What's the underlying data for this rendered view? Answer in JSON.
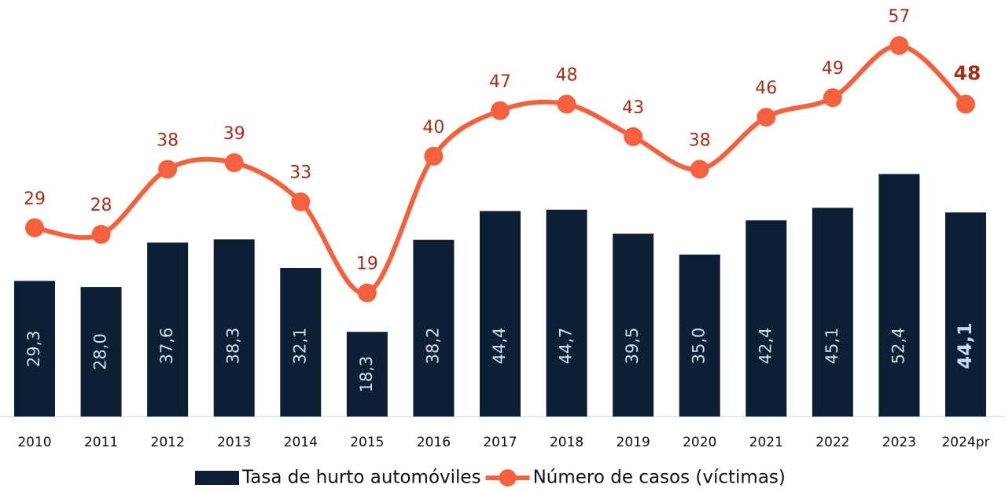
{
  "chart_data": {
    "type": "bar-line",
    "categories": [
      "2010",
      "2011",
      "2012",
      "2013",
      "2014",
      "2015",
      "2016",
      "2017",
      "2018",
      "2019",
      "2020",
      "2021",
      "2022",
      "2023",
      "2024pr"
    ],
    "series": [
      {
        "name": "Tasa de hurto automóviles",
        "type": "bar",
        "color": "#0d1f35",
        "values": [
          29.3,
          28.0,
          37.6,
          38.3,
          32.1,
          18.3,
          38.2,
          44.4,
          44.7,
          39.5,
          35.0,
          42.4,
          45.1,
          52.4,
          44.1
        ],
        "value_labels": [
          "29,3",
          "28,0",
          "37,6",
          "38,3",
          "32,1",
          "18,3",
          "38,2",
          "44,4",
          "44,7",
          "39,5",
          "35,0",
          "42,4",
          "45,1",
          "52,4",
          "44,1"
        ]
      },
      {
        "name": "Número de casos (víctimas)",
        "type": "line",
        "axis": "y2",
        "color": "#f4613c",
        "values": [
          29,
          28,
          38,
          39,
          33,
          19,
          40,
          47,
          48,
          43,
          38,
          46,
          49,
          57,
          48
        ]
      }
    ],
    "ylim": [
      0,
      90
    ],
    "y2lim": [
      0,
      64
    ]
  }
}
